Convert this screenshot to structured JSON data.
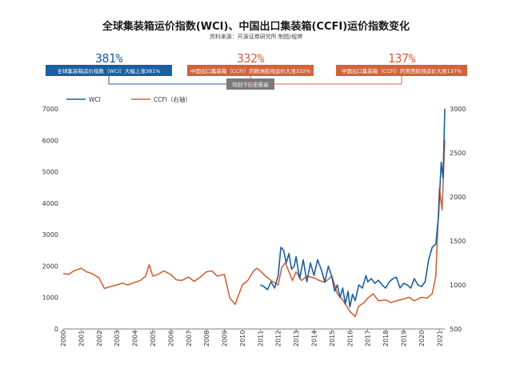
{
  "header": {
    "title": "全球集装箱运价指数(WCI)、中国出口集装箱(CCFI)运价指数变化",
    "source": "资料来源：开源证券研究所    制图/程婷"
  },
  "stats": {
    "wci": {
      "value": "381%",
      "label": "全球集装箱运价指数（WCI）大幅上涨381%"
    },
    "europe": {
      "value": "332%",
      "label": "中国出口集装箱（CCFI）的欧洲航线运价大涨332%"
    },
    "us": {
      "value": "137%",
      "label": "中国出口集装箱（CCFI）的美西航线运价大涨137%"
    },
    "note": "均创下历史新高"
  },
  "colors": {
    "wci": "#1a5fa0",
    "ccfi": "#d0643a"
  },
  "chart_data": {
    "type": "line",
    "x_categories": [
      "2000",
      "2001",
      "2002",
      "2003",
      "2004",
      "2005",
      "2006",
      "2007",
      "2008",
      "2009",
      "2010",
      "2011",
      "2012",
      "2013",
      "2014",
      "2015",
      "2016",
      "2017",
      "2018",
      "2019",
      "2020",
      "2021"
    ],
    "left_axis": {
      "ylim": [
        0,
        7000
      ],
      "ticks": [
        0,
        1000,
        2000,
        3000,
        4000,
        5000,
        6000,
        7000
      ]
    },
    "right_axis": {
      "ylim": [
        500,
        3000
      ],
      "ticks": [
        500,
        1000,
        1500,
        2000,
        2500,
        3000
      ]
    },
    "legend": {
      "placement": "top",
      "entries": [
        "WCI",
        "CCFI（右轴）"
      ]
    },
    "series": [
      {
        "name": "WCI",
        "axis": "left",
        "x": [
          2011.0,
          2011.2,
          2011.4,
          2011.6,
          2011.8,
          2012.0,
          2012.15,
          2012.3,
          2012.45,
          2012.6,
          2012.75,
          2012.9,
          2013.0,
          2013.2,
          2013.4,
          2013.6,
          2013.8,
          2014.0,
          2014.2,
          2014.4,
          2014.6,
          2014.8,
          2015.0,
          2015.15,
          2015.3,
          2015.45,
          2015.6,
          2015.75,
          2015.9,
          2016.0,
          2016.15,
          2016.3,
          2016.5,
          2016.7,
          2016.9,
          2017.0,
          2017.2,
          2017.4,
          2017.6,
          2017.8,
          2018.0,
          2018.2,
          2018.4,
          2018.6,
          2018.8,
          2019.0,
          2019.2,
          2019.4,
          2019.6,
          2019.8,
          2020.0,
          2020.2,
          2020.4,
          2020.6,
          2020.8,
          2020.95,
          2021.1,
          2021.2,
          2021.3
        ],
        "y": [
          1400,
          1350,
          1250,
          1500,
          1300,
          1700,
          2600,
          2500,
          2100,
          2400,
          1900,
          2000,
          2300,
          1600,
          2200,
          1500,
          2100,
          1700,
          2200,
          1900,
          1500,
          2000,
          1650,
          1200,
          1400,
          1000,
          1300,
          800,
          1200,
          700,
          1100,
          900,
          1400,
          1300,
          1700,
          1500,
          1600,
          1450,
          1550,
          1400,
          1300,
          1500,
          1600,
          1650,
          1300,
          1450,
          1400,
          1300,
          1600,
          1400,
          1350,
          1500,
          2200,
          2600,
          2700,
          3600,
          5300,
          4800,
          7000
        ]
      },
      {
        "name": "CCFI（右轴）",
        "axis": "right",
        "x": [
          2000.0,
          2000.3,
          2000.6,
          2001.0,
          2001.3,
          2001.6,
          2002.0,
          2002.3,
          2002.6,
          2003.0,
          2003.3,
          2003.6,
          2004.0,
          2004.3,
          2004.6,
          2004.8,
          2005.0,
          2005.3,
          2005.6,
          2006.0,
          2006.3,
          2006.6,
          2007.0,
          2007.3,
          2007.6,
          2008.0,
          2008.3,
          2008.6,
          2009.0,
          2009.3,
          2009.6,
          2010.0,
          2010.3,
          2010.6,
          2010.8,
          2011.0,
          2011.3,
          2011.6,
          2012.0,
          2012.2,
          2012.4,
          2012.6,
          2012.8,
          2013.0,
          2013.3,
          2013.6,
          2014.0,
          2014.3,
          2014.6,
          2015.0,
          2015.3,
          2015.6,
          2016.0,
          2016.3,
          2016.5,
          2016.8,
          2017.0,
          2017.3,
          2017.6,
          2018.0,
          2018.3,
          2018.6,
          2019.0,
          2019.3,
          2019.6,
          2020.0,
          2020.3,
          2020.6,
          2020.8,
          2021.0,
          2021.15,
          2021.3
        ],
        "y": [
          1130,
          1120,
          1160,
          1190,
          1150,
          1130,
          1080,
          960,
          980,
          1000,
          1020,
          1000,
          1030,
          1050,
          1100,
          1230,
          1100,
          1120,
          1160,
          1120,
          1060,
          1050,
          1090,
          1040,
          1080,
          1150,
          1160,
          1100,
          1120,
          850,
          780,
          1000,
          1050,
          1150,
          1190,
          1160,
          1100,
          1050,
          1000,
          1200,
          1250,
          1150,
          1050,
          1150,
          1050,
          1100,
          1080,
          1050,
          1030,
          1100,
          900,
          830,
          700,
          640,
          760,
          800,
          850,
          900,
          820,
          830,
          800,
          820,
          840,
          860,
          820,
          860,
          850,
          900,
          1100,
          2100,
          1850,
          2650
        ]
      }
    ]
  }
}
